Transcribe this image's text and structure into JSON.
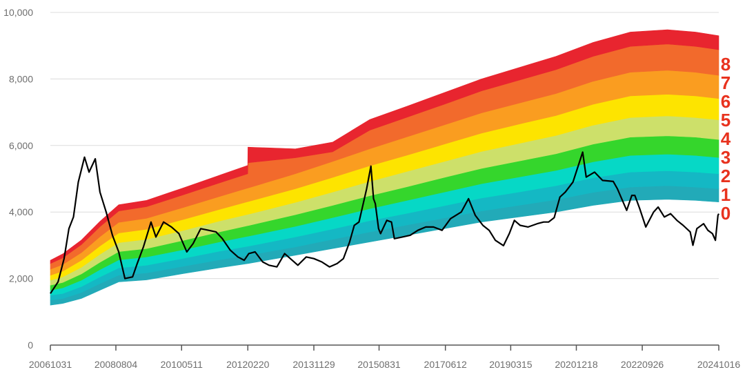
{
  "chart_data": {
    "type": "area",
    "title": "",
    "xlabel": "",
    "ylabel": "",
    "ylim": [
      0,
      10000
    ],
    "y_ticks": [
      "0",
      "2,000",
      "4,000",
      "6,000",
      "8,000",
      "10,000"
    ],
    "y_tick_values": [
      0,
      2000,
      4000,
      6000,
      8000,
      10000
    ],
    "x_range": [
      "2006-10-31",
      "2024-10-16"
    ],
    "x_tick_labels": [
      "20061031",
      "20080804",
      "20100511",
      "20120220",
      "20131129",
      "20150831",
      "20170612",
      "20190315",
      "20201218",
      "20220926",
      "20241016"
    ],
    "x_tick_dates": [
      "2006-10-31",
      "2008-08-04",
      "2010-05-11",
      "2012-02-20",
      "2013-11-29",
      "2015-08-31",
      "2017-06-12",
      "2019-03-15",
      "2020-12-18",
      "2022-09-26",
      "2024-10-16"
    ],
    "grid": true,
    "band_labels": [
      "8",
      "7",
      "6",
      "5",
      "4",
      "3",
      "2",
      "1",
      "0"
    ],
    "band_colors": [
      "#e8252f",
      "#f26a2c",
      "#fa9d20",
      "#fde400",
      "#cde06a",
      "#35d62c",
      "#06d8c6",
      "#14b8c4",
      "#22aab8"
    ],
    "band_boundary_dates": [
      "2006-10-31",
      "2007-03-01",
      "2007-09-01",
      "2008-03-01",
      "2008-09-01",
      "2009-06-01",
      "2010-06-01",
      "2011-06-01",
      "2012-02-19",
      "2012-02-21",
      "2013-06-01",
      "2014-06-01",
      "2015-06-01",
      "2016-06-01",
      "2017-06-01",
      "2018-06-01",
      "2019-06-01",
      "2020-06-01",
      "2021-06-01",
      "2022-06-01",
      "2023-06-01",
      "2024-03-01",
      "2024-10-16"
    ],
    "band_boundaries": [
      [
        1200,
        1250,
        1400,
        1650,
        1900,
        1960,
        2150,
        2330,
        2450,
        2450,
        2700,
        2900,
        3100,
        3300,
        3500,
        3700,
        3850,
        4000,
        4200,
        4350,
        4380,
        4350,
        4300
      ],
      [
        1350,
        1400,
        1580,
        1850,
        2100,
        2170,
        2370,
        2570,
        2700,
        2700,
        2950,
        3180,
        3400,
        3610,
        3820,
        4030,
        4200,
        4370,
        4590,
        4750,
        4790,
        4750,
        4700
      ],
      [
        1500,
        1550,
        1760,
        2050,
        2320,
        2400,
        2610,
        2830,
        2970,
        2970,
        3250,
        3490,
        3740,
        3960,
        4190,
        4420,
        4600,
        4790,
        5030,
        5200,
        5240,
        5200,
        5150
      ],
      [
        1650,
        1720,
        1950,
        2270,
        2560,
        2650,
        2870,
        3110,
        3270,
        3270,
        3570,
        3830,
        4100,
        4350,
        4600,
        4850,
        5050,
        5250,
        5510,
        5700,
        5740,
        5700,
        5640
      ],
      [
        1800,
        1880,
        2140,
        2490,
        2810,
        2900,
        3150,
        3410,
        3590,
        3590,
        3920,
        4200,
        4490,
        4760,
        5040,
        5310,
        5530,
        5750,
        6040,
        6250,
        6290,
        6250,
        6180
      ],
      [
        1950,
        2050,
        2340,
        2730,
        3080,
        3180,
        3450,
        3740,
        3930,
        3930,
        4290,
        4600,
        4920,
        5220,
        5520,
        5820,
        6060,
        6300,
        6610,
        6840,
        6890,
        6840,
        6770
      ],
      [
        2100,
        2220,
        2550,
        2980,
        3370,
        3480,
        3780,
        4090,
        4310,
        4310,
        4700,
        5040,
        5390,
        5710,
        6040,
        6370,
        6640,
        6900,
        7240,
        7490,
        7540,
        7490,
        7410
      ],
      [
        2280,
        2420,
        2780,
        3260,
        3690,
        3810,
        4140,
        4480,
        4720,
        4720,
        5150,
        5520,
        5900,
        6260,
        6620,
        6980,
        7270,
        7560,
        7930,
        8200,
        8260,
        8200,
        8110
      ],
      [
        2450,
        2620,
        3020,
        3560,
        4030,
        4160,
        4520,
        4890,
        5150,
        5480,
        5630,
        5810,
        6460,
        6850,
        7240,
        7640,
        7960,
        8280,
        8680,
        8980,
        9050,
        8980,
        8880
      ],
      [
        2550,
        2740,
        3160,
        3720,
        4220,
        4350,
        4730,
        5120,
        5400,
        5950,
        5900,
        6100,
        6780,
        7180,
        7590,
        8000,
        8340,
        8680,
        9100,
        9410,
        9480,
        9410,
        9300
      ]
    ],
    "index_series": {
      "dates": [
        "2006-10-31",
        "2007-01-15",
        "2007-03-15",
        "2007-05-01",
        "2007-06-15",
        "2007-08-01",
        "2007-10-01",
        "2007-11-15",
        "2008-01-15",
        "2008-03-01",
        "2008-05-01",
        "2008-07-01",
        "2008-09-01",
        "2008-11-01",
        "2009-01-15",
        "2009-03-01",
        "2009-05-01",
        "2009-07-15",
        "2009-09-01",
        "2009-11-15",
        "2010-02-01",
        "2010-04-15",
        "2010-07-01",
        "2010-09-01",
        "2010-11-15",
        "2011-02-01",
        "2011-04-15",
        "2011-06-15",
        "2011-09-01",
        "2011-11-15",
        "2012-01-15",
        "2012-03-01",
        "2012-05-01",
        "2012-07-15",
        "2012-09-15",
        "2012-12-01",
        "2013-02-15",
        "2013-06-25",
        "2013-09-15",
        "2013-11-29",
        "2014-02-15",
        "2014-05-01",
        "2014-07-15",
        "2014-09-15",
        "2014-11-15",
        "2014-12-31",
        "2015-02-15",
        "2015-04-01",
        "2015-05-01",
        "2015-06-12",
        "2015-07-08",
        "2015-07-25",
        "2015-08-26",
        "2015-09-15",
        "2015-11-15",
        "2015-12-31",
        "2016-01-28",
        "2016-04-15",
        "2016-07-01",
        "2016-09-15",
        "2016-12-01",
        "2017-02-15",
        "2017-05-10",
        "2017-08-01",
        "2017-11-15",
        "2018-01-25",
        "2018-04-01",
        "2018-06-15",
        "2018-08-15",
        "2018-10-15",
        "2019-01-03",
        "2019-03-01",
        "2019-04-20",
        "2019-06-15",
        "2019-09-01",
        "2019-12-01",
        "2020-02-01",
        "2020-03-20",
        "2020-05-15",
        "2020-07-10",
        "2020-09-01",
        "2020-11-15",
        "2021-02-18",
        "2021-03-25",
        "2021-06-15",
        "2021-09-01",
        "2021-12-15",
        "2022-01-25",
        "2022-04-26",
        "2022-06-15",
        "2022-07-15",
        "2022-09-01",
        "2022-10-31",
        "2023-01-15",
        "2023-03-01",
        "2023-05-01",
        "2023-07-01",
        "2023-09-01",
        "2023-11-01",
        "2024-01-10",
        "2024-02-05",
        "2024-03-15",
        "2024-05-20",
        "2024-07-01",
        "2024-08-15",
        "2024-09-13",
        "2024-10-08",
        "2024-10-16"
      ],
      "values": [
        1550,
        1900,
        2600,
        3500,
        3850,
        4900,
        5650,
        5200,
        5600,
        4600,
        4000,
        3300,
        2800,
        2000,
        2050,
        2450,
        2950,
        3700,
        3250,
        3700,
        3550,
        3350,
        2800,
        3050,
        3500,
        3450,
        3400,
        3200,
        2850,
        2650,
        2550,
        2750,
        2800,
        2500,
        2400,
        2350,
        2750,
        2400,
        2650,
        2600,
        2500,
        2350,
        2450,
        2600,
        3100,
        3600,
        3700,
        4300,
        4700,
        5380,
        4400,
        4250,
        3500,
        3350,
        3750,
        3700,
        3200,
        3250,
        3300,
        3450,
        3550,
        3550,
        3450,
        3800,
        4000,
        4400,
        3900,
        3600,
        3450,
        3150,
        2990,
        3350,
        3750,
        3600,
        3550,
        3650,
        3700,
        3700,
        3830,
        4450,
        4600,
        4900,
        5800,
        5050,
        5200,
        4950,
        4920,
        4700,
        4050,
        4500,
        4500,
        4100,
        3550,
        4000,
        4150,
        3850,
        3950,
        3750,
        3600,
        3400,
        3000,
        3500,
        3650,
        3450,
        3350,
        3150,
        3900,
        3950
      ]
    }
  }
}
